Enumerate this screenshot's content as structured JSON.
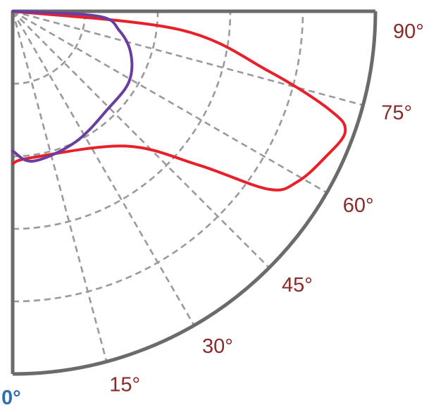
{
  "chart_data": {
    "type": "polar_quadrant",
    "angle_labels": [
      {
        "text": "0°",
        "angle": 0
      },
      {
        "text": "15°",
        "angle": 15
      },
      {
        "text": "30°",
        "angle": 30
      },
      {
        "text": "45°",
        "angle": 45
      },
      {
        "text": "60°",
        "angle": 60
      },
      {
        "text": "75°",
        "angle": 75
      },
      {
        "text": "90°",
        "angle": 90
      }
    ],
    "radial_gridlines_deg": [
      15,
      30,
      45,
      60,
      75
    ],
    "arc_gridline_count": 4,
    "series": [
      {
        "color": "#e8202a",
        "points": [
          [
            0,
            0.42
          ],
          [
            7.3,
            0.407
          ],
          [
            40,
            0.485
          ],
          [
            50.4,
            0.665
          ],
          [
            55.2,
            0.86
          ],
          [
            59.1,
            0.915
          ],
          [
            64.8,
            0.95
          ],
          [
            70.1,
            0.975
          ],
          [
            72.7,
            0.916
          ],
          [
            76.8,
            0.726
          ],
          [
            83.7,
            0.464
          ],
          [
            90,
            0
          ]
        ]
      },
      {
        "color": "#6a3ea1",
        "points": [
          [
            0,
            0.385
          ],
          [
            7.8,
            0.417
          ],
          [
            25.6,
            0.4
          ],
          [
            44.4,
            0.376
          ],
          [
            58.7,
            0.375
          ],
          [
            70.3,
            0.346
          ],
          [
            79.7,
            0.299
          ],
          [
            86.7,
            0.236
          ],
          [
            90,
            0
          ]
        ]
      }
    ],
    "colors": {
      "label": "#8b2a2a",
      "zero_label": "#2f6fb0",
      "grid": "#9a9a9a",
      "frame": "#6b6b6b"
    }
  }
}
